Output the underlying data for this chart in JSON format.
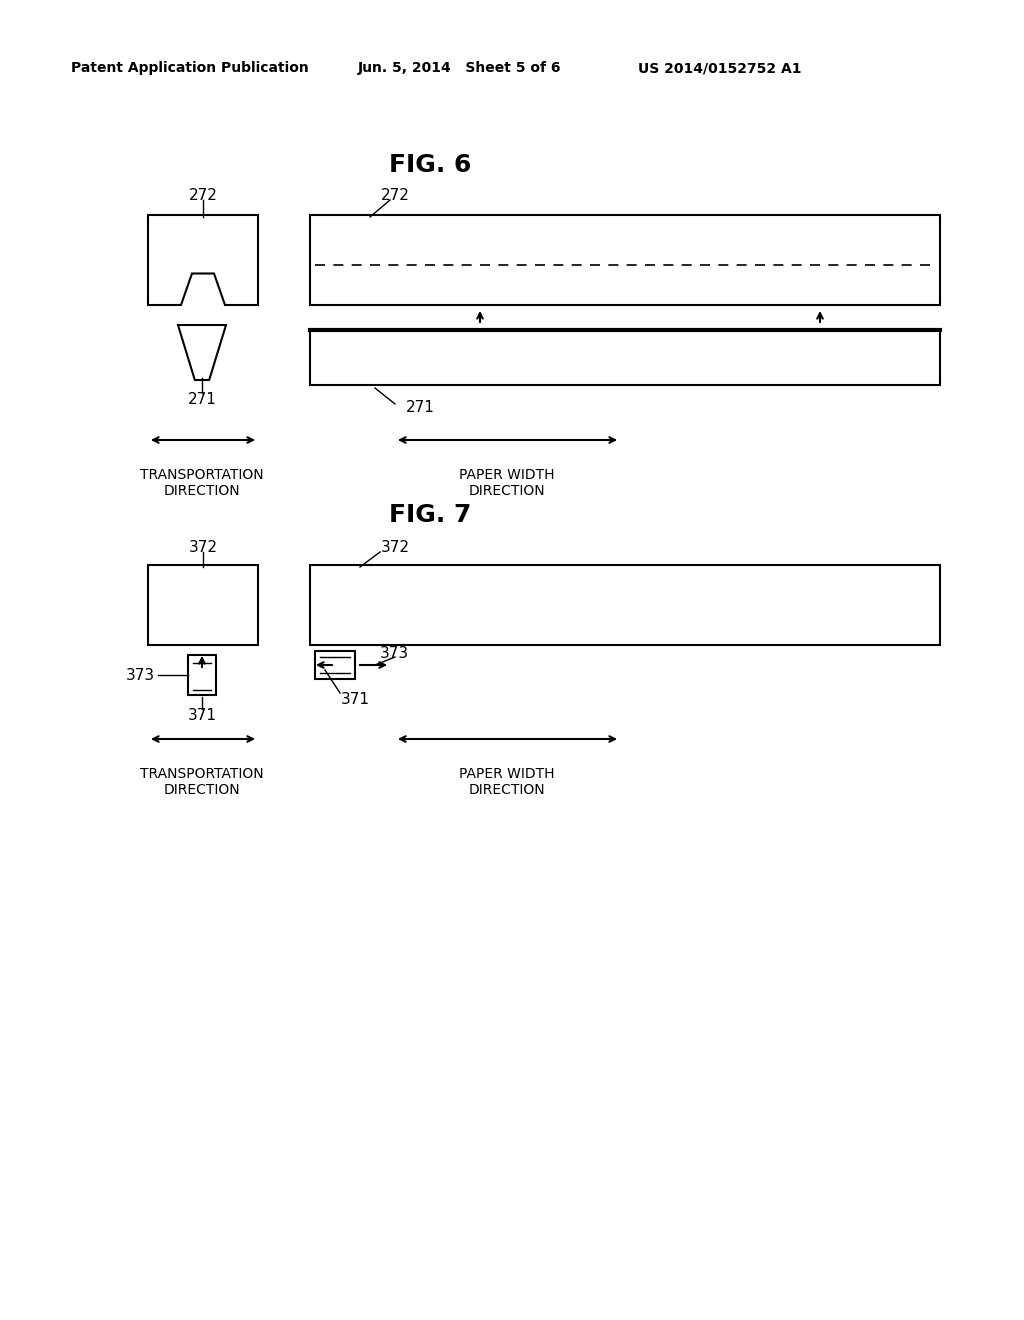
{
  "bg_color": "#ffffff",
  "header_left": "Patent Application Publication",
  "header_mid": "Jun. 5, 2014   Sheet 5 of 6",
  "header_right": "US 2014/0152752 A1",
  "fig6_title": "FIG. 6",
  "fig7_title": "FIG. 7",
  "label_272_left6": "272",
  "label_272_right6": "272",
  "label_271_left6": "271",
  "label_271_right6": "271",
  "label_272_left7": "372",
  "label_272_right7": "372",
  "label_271_left7": "371",
  "label_271_right7": "371",
  "label_373_left": "373",
  "label_373_right": "373",
  "dir_label1": "TRANSPORTATION\nDIRECTION",
  "dir_label2": "PAPER WIDTH\nDIRECTION"
}
